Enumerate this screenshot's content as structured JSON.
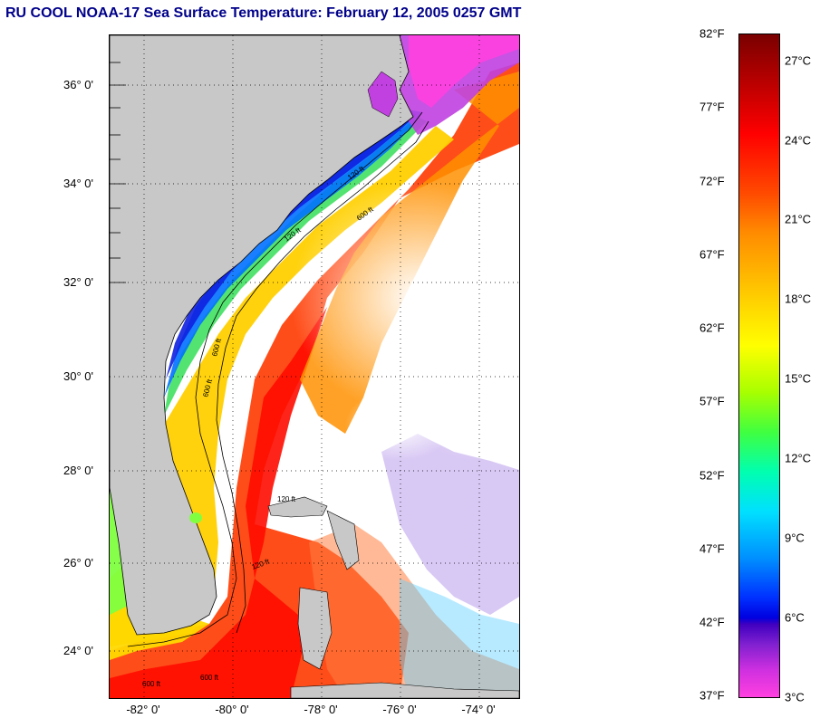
{
  "title": "RU COOL  NOAA-17  Sea Surface Temperature:  February 12, 2005 0257 GMT",
  "map": {
    "lat_ticks": [
      "36° 0'",
      "34° 0'",
      "32° 0'",
      "30° 0'",
      "28° 0'",
      "26° 0'",
      "24° 0'"
    ],
    "lon_ticks": [
      "-82° 0'",
      "-80° 0'",
      "-78° 0'",
      "-76° 0'",
      "-74° 0'"
    ],
    "contour_labels": [
      "120 ft",
      "600 ft",
      "120 ft",
      "600 ft",
      "600 ft",
      "120 ft",
      "120 ft",
      "600 ft",
      "600 ft"
    ]
  },
  "colorbar": {
    "fahrenheit": [
      "82°F",
      "77°F",
      "72°F",
      "67°F",
      "62°F",
      "57°F",
      "52°F",
      "47°F",
      "42°F",
      "37°F"
    ],
    "celsius": [
      "27°C",
      "24°C",
      "21°C",
      "18°C",
      "15°C",
      "12°C",
      "9°C",
      "6°C",
      "3°C"
    ]
  },
  "colors": {
    "land": "#c8c8c8",
    "title": "#00008b",
    "gulf_stream": "#ff2000",
    "cloud": "#ffffff"
  }
}
